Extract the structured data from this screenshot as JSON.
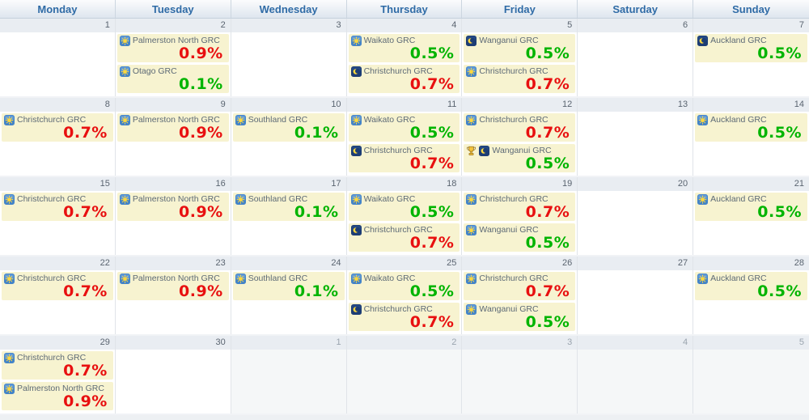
{
  "colors": {
    "negative_red": "#e81010",
    "positive_green": "#00b400",
    "event_bg": "#f7f3d0",
    "header_text": "#2f6ba6",
    "sun_icon_bg": "#4484c8",
    "moon_icon_bg": "#1d3d74",
    "trophy_gold": "#f5c33b"
  },
  "calendar": {
    "day_headers": [
      "Monday",
      "Tuesday",
      "Wednesday",
      "Thursday",
      "Friday",
      "Saturday",
      "Sunday"
    ],
    "weeks": [
      {
        "days": [
          {
            "number": "1",
            "other_month": false,
            "events": []
          },
          {
            "number": "2",
            "other_month": false,
            "events": [
              {
                "icon": "sun",
                "trophy": false,
                "title": "Palmerston North GRC",
                "percent": "0.9%",
                "color": "red"
              },
              {
                "icon": "sun",
                "trophy": false,
                "title": "Otago GRC",
                "percent": "0.1%",
                "color": "green"
              }
            ]
          },
          {
            "number": "3",
            "other_month": false,
            "events": []
          },
          {
            "number": "4",
            "other_month": false,
            "events": [
              {
                "icon": "sun",
                "trophy": false,
                "title": "Waikato GRC",
                "percent": "0.5%",
                "color": "green"
              },
              {
                "icon": "moon",
                "trophy": false,
                "title": "Christchurch GRC",
                "percent": "0.7%",
                "color": "red"
              }
            ]
          },
          {
            "number": "5",
            "other_month": false,
            "events": [
              {
                "icon": "moon",
                "trophy": false,
                "title": "Wanganui GRC",
                "percent": "0.5%",
                "color": "green"
              },
              {
                "icon": "sun",
                "trophy": false,
                "title": "Christchurch GRC",
                "percent": "0.7%",
                "color": "red"
              }
            ]
          },
          {
            "number": "6",
            "other_month": false,
            "events": []
          },
          {
            "number": "7",
            "other_month": false,
            "events": [
              {
                "icon": "moon",
                "trophy": false,
                "title": "Auckland GRC",
                "percent": "0.5%",
                "color": "green"
              }
            ]
          }
        ]
      },
      {
        "days": [
          {
            "number": "8",
            "other_month": false,
            "events": [
              {
                "icon": "sun",
                "trophy": false,
                "title": "Christchurch GRC",
                "percent": "0.7%",
                "color": "red"
              }
            ]
          },
          {
            "number": "9",
            "other_month": false,
            "events": [
              {
                "icon": "sun",
                "trophy": false,
                "title": "Palmerston North GRC",
                "percent": "0.9%",
                "color": "red"
              }
            ]
          },
          {
            "number": "10",
            "other_month": false,
            "events": [
              {
                "icon": "sun",
                "trophy": false,
                "title": "Southland GRC",
                "percent": "0.1%",
                "color": "green"
              }
            ]
          },
          {
            "number": "11",
            "other_month": false,
            "events": [
              {
                "icon": "sun",
                "trophy": false,
                "title": "Waikato GRC",
                "percent": "0.5%",
                "color": "green"
              },
              {
                "icon": "moon",
                "trophy": false,
                "title": "Christchurch GRC",
                "percent": "0.7%",
                "color": "red"
              }
            ]
          },
          {
            "number": "12",
            "other_month": false,
            "events": [
              {
                "icon": "sun",
                "trophy": false,
                "title": "Christchurch GRC",
                "percent": "0.7%",
                "color": "red"
              },
              {
                "icon": "moon",
                "trophy": true,
                "title": "Wanganui GRC",
                "percent": "0.5%",
                "color": "green"
              }
            ]
          },
          {
            "number": "13",
            "other_month": false,
            "events": []
          },
          {
            "number": "14",
            "other_month": false,
            "events": [
              {
                "icon": "sun",
                "trophy": false,
                "title": "Auckland GRC",
                "percent": "0.5%",
                "color": "green"
              }
            ]
          }
        ]
      },
      {
        "days": [
          {
            "number": "15",
            "other_month": false,
            "events": [
              {
                "icon": "sun",
                "trophy": false,
                "title": "Christchurch GRC",
                "percent": "0.7%",
                "color": "red"
              }
            ]
          },
          {
            "number": "16",
            "other_month": false,
            "events": [
              {
                "icon": "sun",
                "trophy": false,
                "title": "Palmerston North GRC",
                "percent": "0.9%",
                "color": "red"
              }
            ]
          },
          {
            "number": "17",
            "other_month": false,
            "events": [
              {
                "icon": "sun",
                "trophy": false,
                "title": "Southland GRC",
                "percent": "0.1%",
                "color": "green"
              }
            ]
          },
          {
            "number": "18",
            "other_month": false,
            "events": [
              {
                "icon": "sun",
                "trophy": false,
                "title": "Waikato GRC",
                "percent": "0.5%",
                "color": "green"
              },
              {
                "icon": "moon",
                "trophy": false,
                "title": "Christchurch GRC",
                "percent": "0.7%",
                "color": "red"
              }
            ]
          },
          {
            "number": "19",
            "other_month": false,
            "events": [
              {
                "icon": "sun",
                "trophy": false,
                "title": "Christchurch GRC",
                "percent": "0.7%",
                "color": "red"
              },
              {
                "icon": "sun",
                "trophy": false,
                "title": "Wanganui GRC",
                "percent": "0.5%",
                "color": "green"
              }
            ]
          },
          {
            "number": "20",
            "other_month": false,
            "events": []
          },
          {
            "number": "21",
            "other_month": false,
            "events": [
              {
                "icon": "sun",
                "trophy": false,
                "title": "Auckland GRC",
                "percent": "0.5%",
                "color": "green"
              }
            ]
          }
        ]
      },
      {
        "days": [
          {
            "number": "22",
            "other_month": false,
            "events": [
              {
                "icon": "sun",
                "trophy": false,
                "title": "Christchurch GRC",
                "percent": "0.7%",
                "color": "red"
              }
            ]
          },
          {
            "number": "23",
            "other_month": false,
            "events": [
              {
                "icon": "sun",
                "trophy": false,
                "title": "Palmerston North GRC",
                "percent": "0.9%",
                "color": "red"
              }
            ]
          },
          {
            "number": "24",
            "other_month": false,
            "events": [
              {
                "icon": "sun",
                "trophy": false,
                "title": "Southland GRC",
                "percent": "0.1%",
                "color": "green"
              }
            ]
          },
          {
            "number": "25",
            "other_month": false,
            "events": [
              {
                "icon": "sun",
                "trophy": false,
                "title": "Waikato GRC",
                "percent": "0.5%",
                "color": "green"
              },
              {
                "icon": "moon",
                "trophy": false,
                "title": "Christchurch GRC",
                "percent": "0.7%",
                "color": "red"
              }
            ]
          },
          {
            "number": "26",
            "other_month": false,
            "events": [
              {
                "icon": "sun",
                "trophy": false,
                "title": "Christchurch GRC",
                "percent": "0.7%",
                "color": "red"
              },
              {
                "icon": "sun",
                "trophy": false,
                "title": "Wanganui GRC",
                "percent": "0.5%",
                "color": "green"
              }
            ]
          },
          {
            "number": "27",
            "other_month": false,
            "events": []
          },
          {
            "number": "28",
            "other_month": false,
            "events": [
              {
                "icon": "sun",
                "trophy": false,
                "title": "Auckland GRC",
                "percent": "0.5%",
                "color": "green"
              }
            ]
          }
        ]
      },
      {
        "days": [
          {
            "number": "29",
            "other_month": false,
            "events": [
              {
                "icon": "sun",
                "trophy": false,
                "title": "Christchurch GRC",
                "percent": "0.7%",
                "color": "red"
              },
              {
                "icon": "sun",
                "trophy": false,
                "title": "Palmerston North GRC",
                "percent": "0.9%",
                "color": "red"
              }
            ]
          },
          {
            "number": "30",
            "other_month": false,
            "events": []
          },
          {
            "number": "1",
            "other_month": true,
            "events": []
          },
          {
            "number": "2",
            "other_month": true,
            "events": []
          },
          {
            "number": "3",
            "other_month": true,
            "events": []
          },
          {
            "number": "4",
            "other_month": true,
            "events": []
          },
          {
            "number": "5",
            "other_month": true,
            "events": []
          }
        ]
      }
    ]
  }
}
